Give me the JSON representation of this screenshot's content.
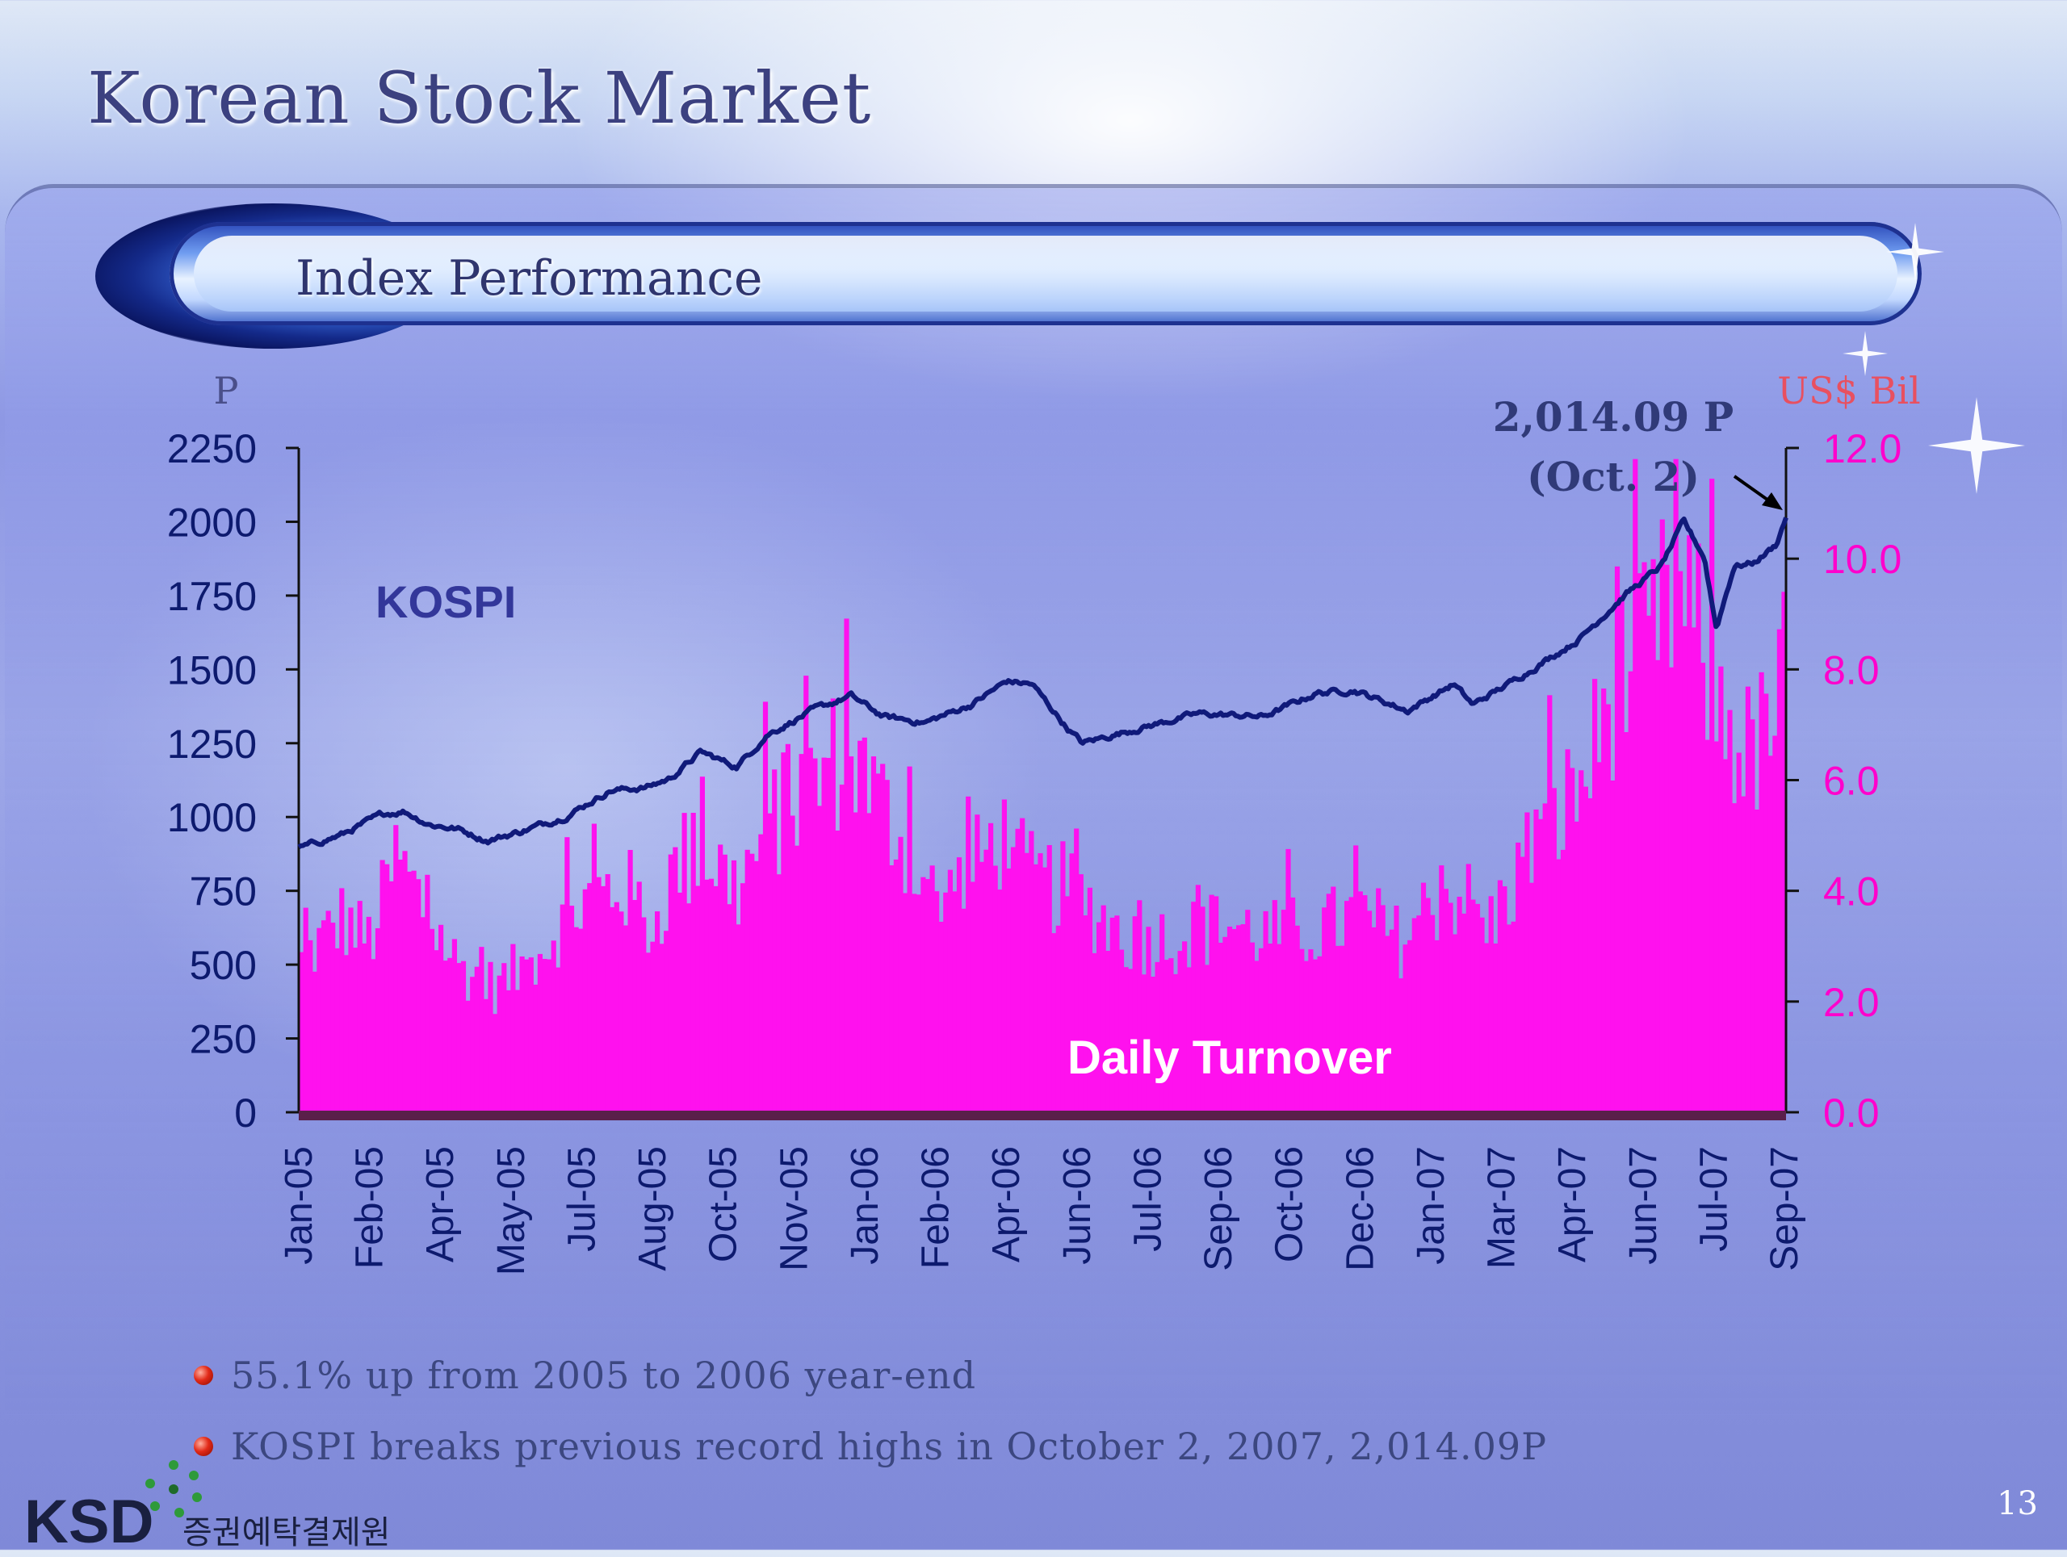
{
  "slide": {
    "title": "Korean Stock Market",
    "subtitle": "Index Performance",
    "page_number": "13"
  },
  "bullets": [
    "55.1% up from 2005 to 2006 year-end",
    "KOSPI breaks previous record highs in October 2, 2007, 2,014.09P"
  ],
  "logo": {
    "name": "KSD",
    "korean_name": "증권예탁결제원"
  },
  "colors": {
    "kospi_line": "#101a7a",
    "turnover_bars": "#ff11ee",
    "left_axis_text": "#0d1a6e",
    "right_axis_text": "#ff00cc",
    "right_unit_text": "#e85060"
  },
  "chart_data": {
    "type": "bar+line",
    "left_unit": "P",
    "right_unit": "US$ Bil",
    "left_ylim": [
      0,
      2250
    ],
    "left_ticks": [
      "2250",
      "2000",
      "1750",
      "1500",
      "1250",
      "1000",
      "750",
      "500",
      "250",
      "0"
    ],
    "right_ylim": [
      0,
      12
    ],
    "right_ticks": [
      "12.0",
      "10.0",
      "8.0",
      "6.0",
      "4.0",
      "2.0",
      "0.0"
    ],
    "x_ticks": [
      "Jan-05",
      "Feb-05",
      "Apr-05",
      "May-05",
      "Jul-05",
      "Aug-05",
      "Oct-05",
      "Nov-05",
      "Jan-06",
      "Feb-06",
      "Apr-06",
      "Jun-06",
      "Jul-06",
      "Sep-06",
      "Oct-06",
      "Dec-06",
      "Jan-07",
      "Mar-07",
      "Apr-07",
      "Jun-07",
      "Jul-07",
      "Sep-07"
    ],
    "annotation": {
      "line1": "2,014.09 P",
      "line2": "(Oct. 2)"
    },
    "series": [
      {
        "name": "KOSPI",
        "axis": "left",
        "points": [
          [
            "2005-01-03",
            893
          ],
          [
            "2005-02-01",
            940
          ],
          [
            "2005-03-01",
            1010
          ],
          [
            "2005-03-15",
            1020
          ],
          [
            "2005-04-01",
            975
          ],
          [
            "2005-04-20",
            960
          ],
          [
            "2005-05-10",
            920
          ],
          [
            "2005-06-01",
            950
          ],
          [
            "2005-07-01",
            1000
          ],
          [
            "2005-08-01",
            1090
          ],
          [
            "2005-08-25",
            1100
          ],
          [
            "2005-09-10",
            1130
          ],
          [
            "2005-10-01",
            1220
          ],
          [
            "2005-10-25",
            1170
          ],
          [
            "2005-11-15",
            1280
          ],
          [
            "2005-12-15",
            1360
          ],
          [
            "2006-01-10",
            1410
          ],
          [
            "2006-02-01",
            1340
          ],
          [
            "2006-03-01",
            1320
          ],
          [
            "2006-04-01",
            1380
          ],
          [
            "2006-04-25",
            1460
          ],
          [
            "2006-05-12",
            1450
          ],
          [
            "2006-06-05",
            1300
          ],
          [
            "2006-06-15",
            1250
          ],
          [
            "2006-07-15",
            1290
          ],
          [
            "2006-09-01",
            1350
          ],
          [
            "2006-10-15",
            1340
          ],
          [
            "2006-11-20",
            1420
          ],
          [
            "2006-12-15",
            1430
          ],
          [
            "2007-01-20",
            1360
          ],
          [
            "2007-02-20",
            1450
          ],
          [
            "2007-03-05",
            1380
          ],
          [
            "2007-04-01",
            1460
          ],
          [
            "2007-05-15",
            1600
          ],
          [
            "2007-06-15",
            1750
          ],
          [
            "2007-07-10",
            1850
          ],
          [
            "2007-07-25",
            2000
          ],
          [
            "2007-08-08",
            1880
          ],
          [
            "2007-08-16",
            1640
          ],
          [
            "2007-08-28",
            1850
          ],
          [
            "2007-09-10",
            1860
          ],
          [
            "2007-09-25",
            1920
          ],
          [
            "2007-10-02",
            2014.09
          ]
        ]
      },
      {
        "name": "Daily Turnover",
        "axis": "right",
        "points": [
          [
            "2005-01-03",
            2.6
          ],
          [
            "2005-02-01",
            3.4
          ],
          [
            "2005-02-20",
            3.0
          ],
          [
            "2005-03-10",
            4.5
          ],
          [
            "2005-04-01",
            3.4
          ],
          [
            "2005-04-20",
            2.6
          ],
          [
            "2005-05-15",
            2.2
          ],
          [
            "2005-06-10",
            2.7
          ],
          [
            "2005-07-01",
            3.4
          ],
          [
            "2005-07-20",
            3.8
          ],
          [
            "2005-08-10",
            4.0
          ],
          [
            "2005-08-30",
            3.2
          ],
          [
            "2005-09-15",
            4.4
          ],
          [
            "2005-10-05",
            4.6
          ],
          [
            "2005-10-25",
            3.9
          ],
          [
            "2005-11-20",
            5.2
          ],
          [
            "2005-12-10",
            5.6
          ],
          [
            "2006-01-05",
            6.4
          ],
          [
            "2006-01-25",
            5.6
          ],
          [
            "2006-02-15",
            4.8
          ],
          [
            "2006-03-10",
            3.6
          ],
          [
            "2006-04-01",
            4.2
          ],
          [
            "2006-04-20",
            4.9
          ],
          [
            "2006-05-10",
            4.1
          ],
          [
            "2006-06-05",
            3.9
          ],
          [
            "2006-06-25",
            3.5
          ],
          [
            "2006-07-20",
            3.0
          ],
          [
            "2006-08-20",
            3.1
          ],
          [
            "2006-09-20",
            3.3
          ],
          [
            "2006-10-20",
            3.1
          ],
          [
            "2006-11-20",
            3.2
          ],
          [
            "2006-12-20",
            3.5
          ],
          [
            "2007-01-15",
            3.0
          ],
          [
            "2007-02-05",
            3.7
          ],
          [
            "2007-02-25",
            3.9
          ],
          [
            "2007-03-15",
            3.2
          ],
          [
            "2007-04-10",
            4.5
          ],
          [
            "2007-05-01",
            5.2
          ],
          [
            "2007-05-20",
            5.9
          ],
          [
            "2007-06-10",
            7.7
          ],
          [
            "2007-06-30",
            8.1
          ],
          [
            "2007-07-20",
            9.2
          ],
          [
            "2007-08-05",
            8.2
          ],
          [
            "2007-08-20",
            7.0
          ],
          [
            "2007-09-05",
            6.3
          ],
          [
            "2007-09-20",
            6.6
          ],
          [
            "2007-10-02",
            7.9
          ]
        ]
      }
    ],
    "labels": {
      "kospi": "KOSPI",
      "turnover": "Daily Turnover"
    }
  }
}
